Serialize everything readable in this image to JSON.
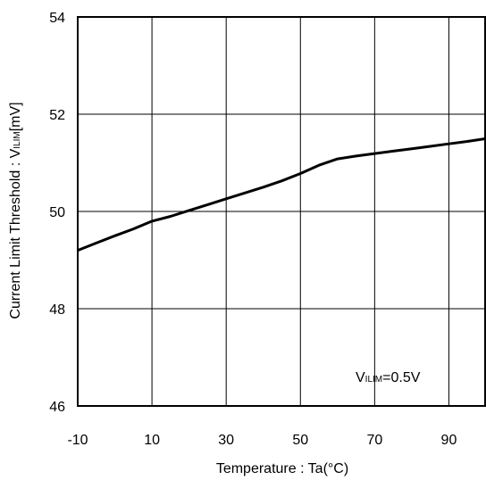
{
  "chart_data": {
    "type": "line",
    "title": "",
    "xlabel": "Temperature : Ta(°C)",
    "ylabel": {
      "prefix": "Current Limit Threshold : V",
      "subscript": "ILIM",
      "suffix": "[mV]"
    },
    "xlim": [
      -10,
      100
    ],
    "ylim": [
      46,
      54
    ],
    "xticks": [
      -10,
      10,
      30,
      50,
      70,
      90
    ],
    "xtick_labels": [
      "-10",
      "10",
      "30",
      "50",
      "70",
      "90"
    ],
    "yticks": [
      46,
      48,
      50,
      52,
      54
    ],
    "ytick_labels": [
      "46",
      "48",
      "50",
      "52",
      "54"
    ],
    "grid": true,
    "annotation": {
      "main": "V",
      "subscript": "ILIM",
      "rest": "=0.5V"
    },
    "series": [
      {
        "color": "#000000",
        "x": [
          -10,
          -5,
          0,
          5,
          10,
          15,
          20,
          25,
          30,
          35,
          40,
          45,
          50,
          55,
          60,
          65,
          70,
          75,
          80,
          85,
          90,
          95,
          100
        ],
        "y": [
          49.2,
          49.35,
          49.5,
          49.64,
          49.8,
          49.9,
          50.02,
          50.14,
          50.26,
          50.38,
          50.5,
          50.63,
          50.78,
          50.95,
          51.08,
          51.14,
          51.19,
          51.24,
          51.29,
          51.34,
          51.39,
          51.44,
          51.5
        ]
      }
    ]
  }
}
